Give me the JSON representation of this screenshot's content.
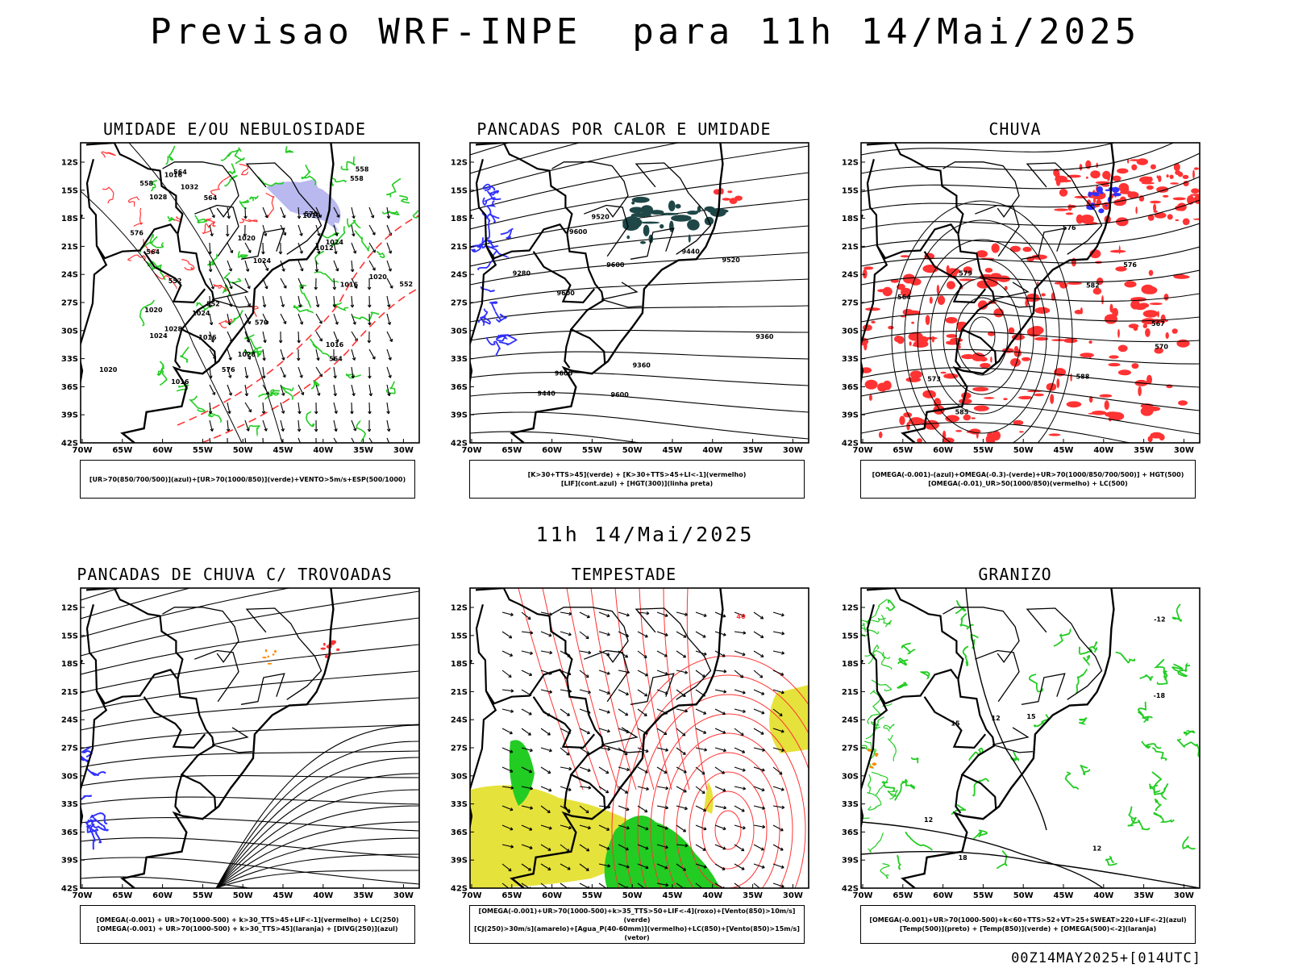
{
  "header": {
    "title": "Previsao WRF-INPE  para 11h 14/Mai/2025",
    "subtitle": "11h 14/Mai/2025",
    "footer": "00Z14MAY2025+[014UTC]"
  },
  "axes": {
    "lat_labels": [
      "12S",
      "15S",
      "18S",
      "21S",
      "24S",
      "27S",
      "30S",
      "33S",
      "36S",
      "39S",
      "42S"
    ],
    "lon_labels": [
      "70W",
      "65W",
      "60W",
      "55W",
      "50W",
      "45W",
      "40W",
      "35W",
      "30W"
    ]
  },
  "panels": [
    {
      "id": "umidade",
      "title": "UMIDADE E/OU NEBULOSIDADE",
      "legend": [
        "[UR>70(850/700/500)](azul)+[UR>70(1000/850)](verde)+VENTO>5m/s+ESP(500/1000)"
      ],
      "contour_labels": [
        "1016",
        "1020",
        "1012",
        "1016",
        "1020",
        "1024",
        "1016",
        "1020",
        "1024",
        "1028",
        "1032",
        "1016",
        "1020",
        "1024",
        "1028",
        "1016",
        "1016",
        "1024",
        "1028",
        "564",
        "570",
        "576",
        "564",
        "558",
        "552",
        "576",
        "564",
        "570",
        "558",
        "552",
        "564",
        "558",
        "552"
      ]
    },
    {
      "id": "pancadas-calor",
      "title": "PANCADAS POR CALOR E UMIDADE",
      "legend": [
        "[K>30+TTS>45](verde) + [K>30+TTS>45+LI<-1](vermelho)",
        "[LIF](cont.azul) + [HGT(300)](linha preta)"
      ],
      "contour_labels": [
        "9600",
        "9600",
        "9600",
        "9600",
        "9600",
        "9520",
        "9440",
        "9520",
        "9360",
        "9440",
        "9280",
        "9360"
      ]
    },
    {
      "id": "chuva",
      "title": "CHUVA",
      "legend": [
        "[OMEGA(-0.001)-(azul)+OMEGA(-0.3)-(verde)+UR>70(1000/850/700/500)] + HGT(500)",
        "[OMEGA(-0.01)_UR>50(1000/850)(vermelho) + LC(500)"
      ],
      "contour_labels": [
        "585",
        "588",
        "582",
        "576",
        "579",
        "570",
        "567",
        "576",
        "573",
        "564"
      ]
    },
    {
      "id": "trovoadas",
      "title": "PANCADAS DE CHUVA C/ TROVOADAS",
      "legend": [
        "[OMEGA(-0.001) + UR>70(1000-500) + k>30_TTS>45+LIF<-1](vermelho) + LC(250)",
        "[OMEGA(-0.001) + UR>70(1000-500) + k>30_TTS>45](laranja) + [DIVG(250)](azul)"
      ],
      "contour_labels": []
    },
    {
      "id": "tempestade",
      "title": "TEMPESTADE",
      "legend": [
        "[OMEGA(-0.001)+UR>70(1000-500)+k>35_TTS>50+LIF<-4](roxo)+[Vento(850)>10m/s](verde)",
        "[CJ(250)>30m/s](amarelo)+[Agua_P(40-60mm)](vermelho)+LC(850)+[Vento(850)>15m/s](vetor)"
      ],
      "contour_labels": [
        "40"
      ]
    },
    {
      "id": "granizo",
      "title": "GRANIZO",
      "legend": [
        "[OMEGA(-0.001)+UR>70(1000-500)+k<60+TTS>52+VT>25+SWEAT>220+LIF<-2](azul)",
        "[Temp(500)](preto) + [Temp(850)](verde) + [OMEGA(500)<-2](laranja)"
      ],
      "contour_labels": [
        "18",
        "15",
        "12",
        "15",
        "12",
        "12",
        "-18",
        "-12"
      ]
    }
  ],
  "colors": {
    "blue": "#3030ff",
    "green": "#22cc22",
    "red": "#ff3333",
    "orange": "#ff8800",
    "yellow": "#e6e23c",
    "lightblue": "#b9b9f0",
    "darkteal": "#1f4747"
  }
}
